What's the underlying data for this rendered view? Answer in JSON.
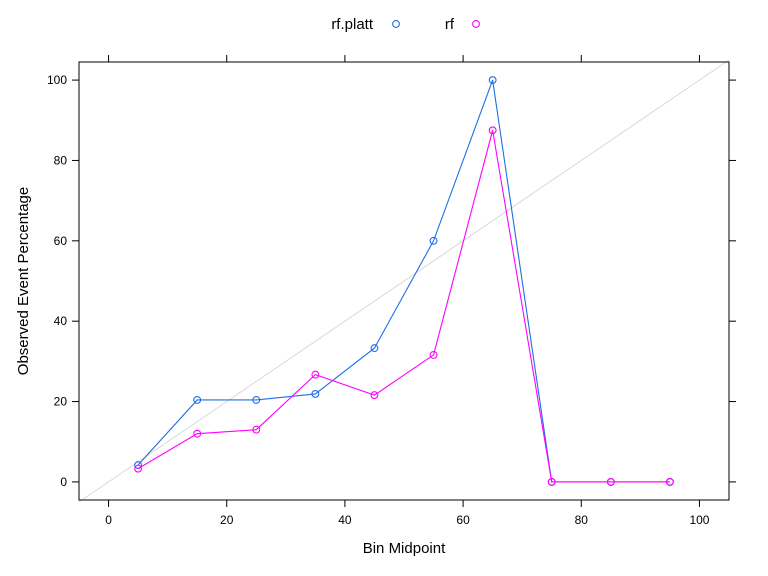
{
  "chart_data": {
    "type": "line",
    "xlabel": "Bin Midpoint",
    "ylabel": "Observed Event Percentage",
    "xlim": [
      -5,
      105
    ],
    "ylim": [
      -4.5,
      104.5
    ],
    "xticks": [
      0,
      20,
      40,
      60,
      80,
      100
    ],
    "yticks": [
      0,
      20,
      40,
      60,
      80,
      100
    ],
    "grid": false,
    "legend_position": "top-center",
    "reference_line": {
      "from": [
        -5,
        -5
      ],
      "to": [
        105,
        105
      ],
      "color": "#d9d9d9"
    },
    "x": [
      5,
      15,
      25,
      35,
      45,
      55,
      65,
      75,
      85,
      95
    ],
    "series": [
      {
        "name": "rf.platt",
        "color": "#1f6fe5",
        "values": [
          4.2,
          20.4,
          20.4,
          21.9,
          33.3,
          60,
          100,
          0,
          0,
          0
        ]
      },
      {
        "name": "rf",
        "color": "#ff00ff",
        "values": [
          3.3,
          12,
          13,
          26.7,
          21.6,
          31.6,
          87.5,
          0,
          0,
          0
        ]
      }
    ]
  }
}
